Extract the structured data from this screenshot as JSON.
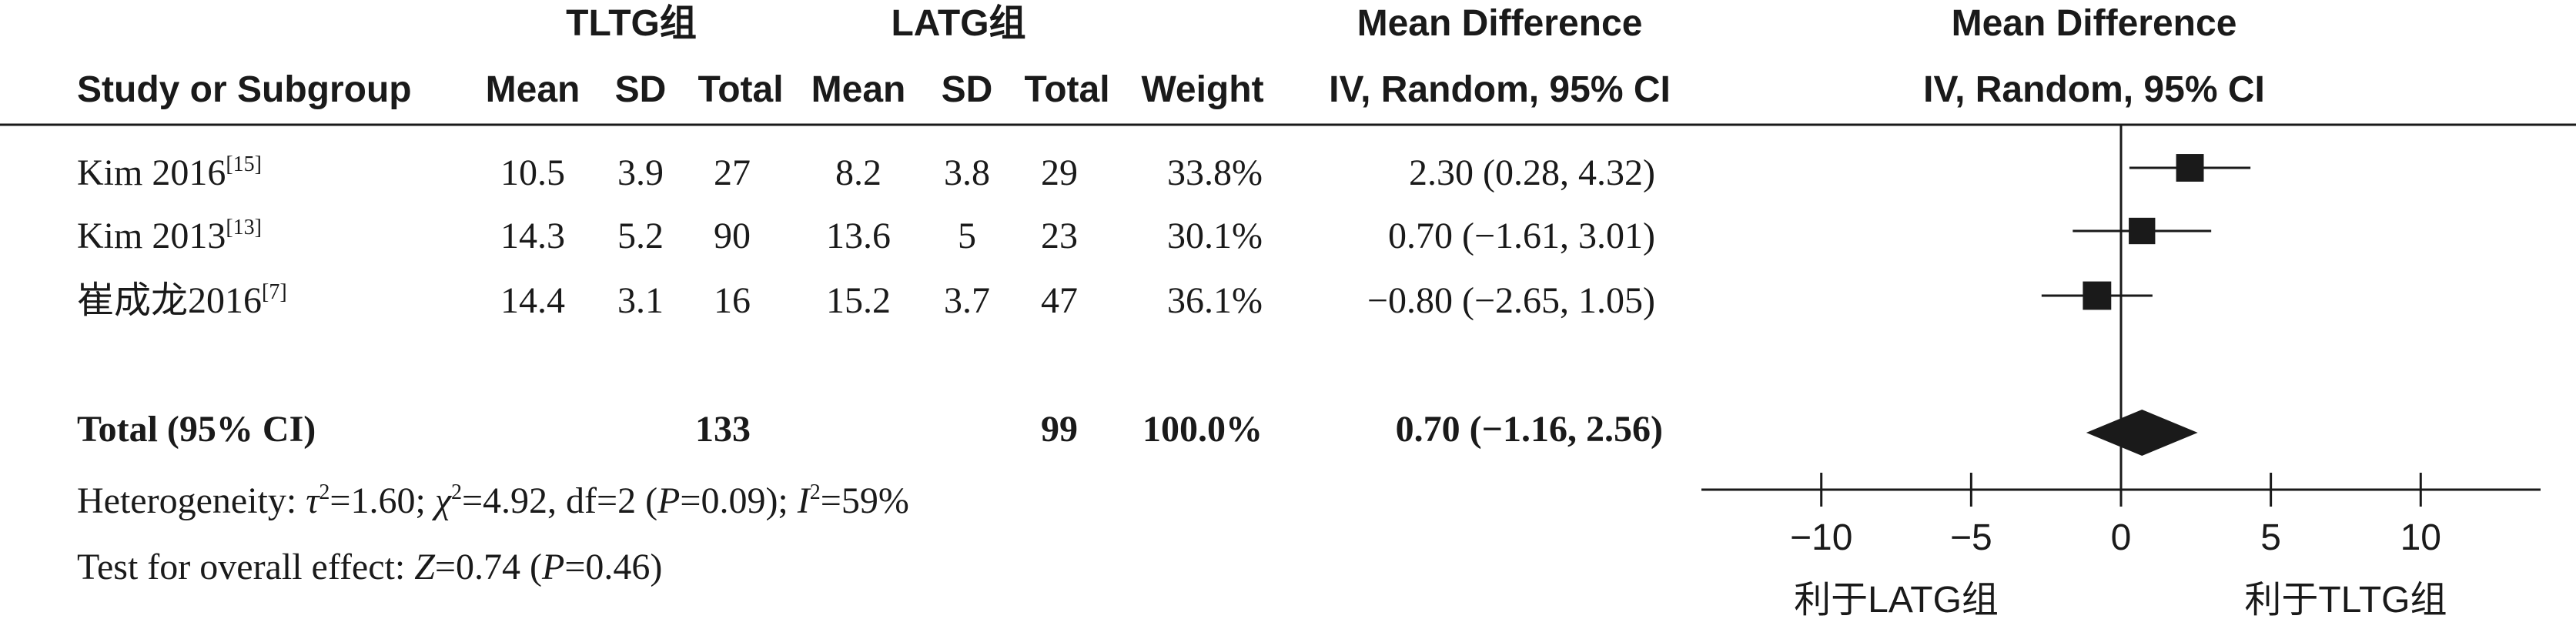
{
  "headers": {
    "group1": "TLTG组",
    "group2": "LATG组",
    "md_title": "Mean Difference",
    "md_method": "IV, Random, 95% CI",
    "plot_title": "Mean Difference",
    "plot_method": "IV, Random, 95% CI",
    "study": "Study or Subgroup",
    "mean1": "Mean",
    "sd1": "SD",
    "total1": "Total",
    "mean2": "Mean",
    "sd2": "SD",
    "total2": "Total",
    "weight": "Weight"
  },
  "studies": [
    {
      "name": "Kim 2016",
      "ref": "[15]",
      "mean1": "10.5",
      "sd1": "3.9",
      "total1": "27",
      "mean2": "8.2",
      "sd2": "3.8",
      "total2": "29",
      "weight": "33.8%",
      "ci": "2.30 (0.28, 4.32)"
    },
    {
      "name": "Kim 2013",
      "ref": "[13]",
      "mean1": "14.3",
      "sd1": "5.2",
      "total1": "90",
      "mean2": "13.6",
      "sd2": "5",
      "total2": "23",
      "weight": "30.1%",
      "ci": "0.70 (−1.61, 3.01)"
    },
    {
      "name": "崔成龙2016",
      "ref": "[7]",
      "mean1": "14.4",
      "sd1": "3.1",
      "total1": "16",
      "mean2": "15.2",
      "sd2": "3.7",
      "total2": "47",
      "weight": "36.1%",
      "ci": "−0.80 (−2.65, 1.05)"
    }
  ],
  "total": {
    "label": "Total (95% CI)",
    "total1": "133",
    "total2": "99",
    "weight": "100.0%",
    "ci": "0.70 (−1.16, 2.56)"
  },
  "heterogeneity": {
    "prefix": "Heterogeneity: ",
    "tau": "τ",
    "tau_val": "=1.60; ",
    "chi": "χ",
    "chi_val": "=4.92, df=2 (",
    "p": "P",
    "p_val": "=0.09); ",
    "i": "I",
    "i_val": "=59%",
    "sup2": "2"
  },
  "overall": {
    "prefix": "Test for overall effect: ",
    "z": "Z",
    "z_val": "=0.74 (",
    "p": "P",
    "p_val": "=0.46)"
  },
  "chart_data": {
    "type": "forest",
    "xlim": [
      -14,
      14
    ],
    "ticks": [
      -10,
      -5,
      0,
      5,
      10
    ],
    "tick_labels": [
      "−10",
      "−5",
      "0",
      "5",
      "10"
    ],
    "favours_left": "利于LATG组",
    "favours_right": "利于TLTG组",
    "studies": [
      {
        "name": "Kim 2016",
        "md": 2.3,
        "lower": 0.28,
        "upper": 4.32,
        "weight": 33.8
      },
      {
        "name": "Kim 2013",
        "md": 0.7,
        "lower": -1.61,
        "upper": 3.01,
        "weight": 30.1
      },
      {
        "name": "崔成龙2016",
        "md": -0.8,
        "lower": -2.65,
        "upper": 1.05,
        "weight": 36.1
      }
    ],
    "total": {
      "md": 0.7,
      "lower": -1.16,
      "upper": 2.56
    }
  }
}
